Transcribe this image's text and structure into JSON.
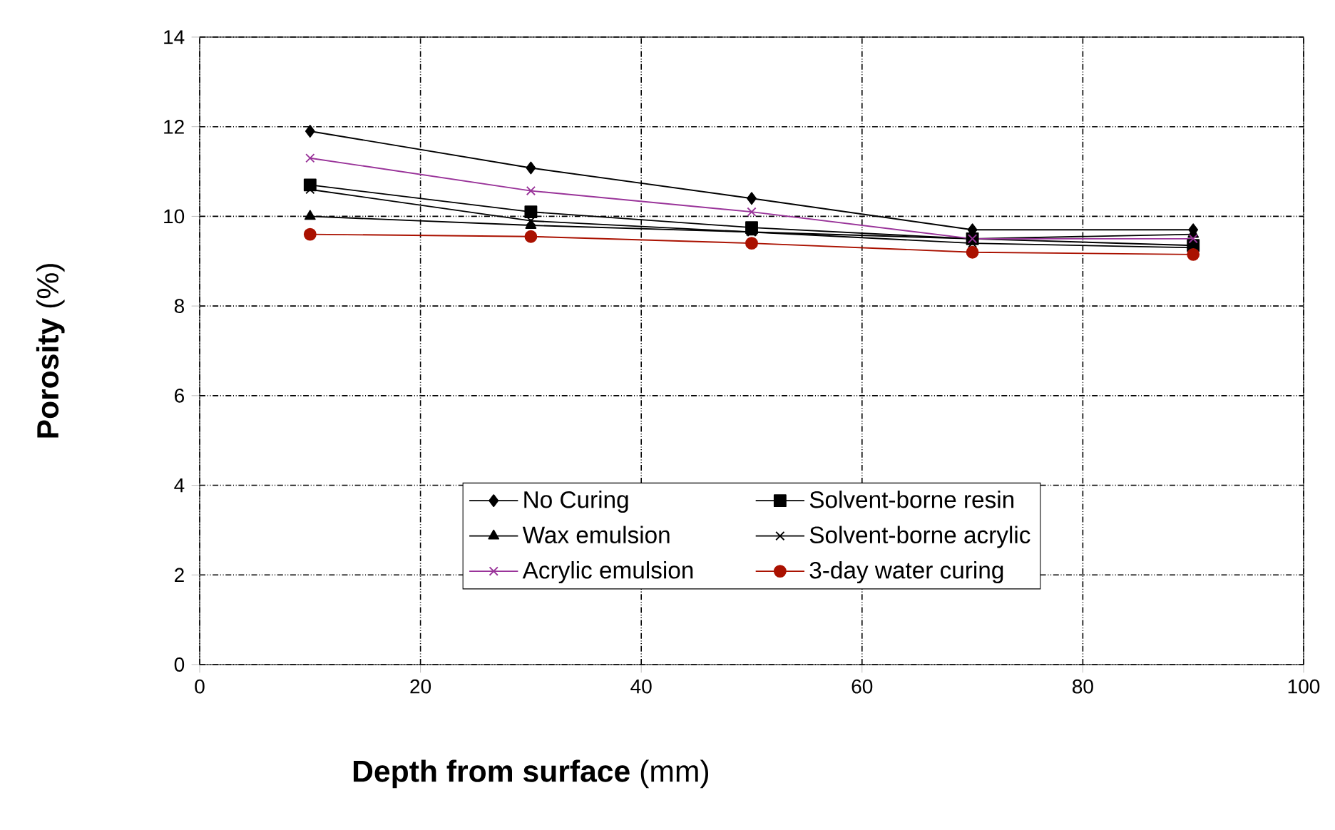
{
  "chart_data": {
    "type": "line",
    "xlabel": "**Depth from surface** (mm)",
    "ylabel": "**Porosity** (%)",
    "x": [
      10,
      30,
      50,
      70,
      90
    ],
    "series": [
      {
        "name": "No Curing",
        "color": "#000000",
        "marker": "diamond",
        "values": [
          11.9,
          11.08,
          10.4,
          9.7,
          9.7
        ]
      },
      {
        "name": "Solvent-borne resin",
        "color": "#000000",
        "marker": "square",
        "values": [
          10.7,
          10.1,
          9.75,
          9.5,
          9.35
        ]
      },
      {
        "name": "Wax emulsion",
        "color": "#000000",
        "marker": "triangle",
        "values": [
          10.0,
          9.8,
          9.65,
          9.5,
          9.6
        ]
      },
      {
        "name": "Solvent-borne acrylic",
        "color": "#000000",
        "marker": "cross",
        "values": [
          10.6,
          9.9,
          9.65,
          9.4,
          9.3
        ]
      },
      {
        "name": "Acrylic emulsion",
        "color": "#993399",
        "marker": "cross",
        "values": [
          11.3,
          10.57,
          10.1,
          9.5,
          9.5
        ]
      },
      {
        "name": "3-day water curing",
        "color": "#aa1100",
        "marker": "circle",
        "values": [
          9.6,
          9.55,
          9.4,
          9.2,
          9.15
        ]
      }
    ],
    "xlim": [
      0,
      100
    ],
    "xticks": [
      0,
      20,
      40,
      60,
      80,
      100
    ],
    "ylim": [
      0,
      14
    ],
    "yticks": [
      0,
      2,
      4,
      6,
      8,
      10,
      12,
      14
    ],
    "grid": true,
    "legend": "bottom",
    "line_style": "solid"
  }
}
